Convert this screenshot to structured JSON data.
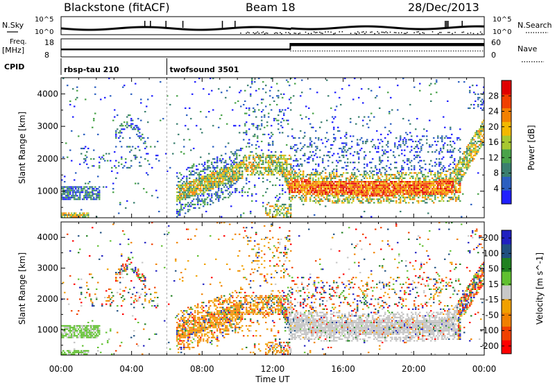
{
  "header": {
    "station": "Blackstone (fitACF)",
    "beam": "Beam 18",
    "date": "28/Dec/2013"
  },
  "sky_panel": {
    "left_label": "N.Sky",
    "right_label": "N.Search",
    "left_ticks": [
      "10^5",
      "10^0"
    ],
    "right_ticks": [
      "10^5",
      "10^0"
    ]
  },
  "freq_panel": {
    "left_label_line1": "Freq.",
    "left_label_line2": "[MHz]",
    "right_label": "Nave",
    "left_ticks": [
      "18",
      "8"
    ],
    "right_ticks": [
      "60",
      "0"
    ]
  },
  "cpid": {
    "label": "CPID",
    "programs": [
      {
        "name": "rbsp-tau 210",
        "start_hour": 0
      },
      {
        "name": "twofsound 3501",
        "start_hour": 6
      }
    ]
  },
  "colors": {
    "power": [
      "#2020ff",
      "#2b5fc0",
      "#3a7f6f",
      "#4aa34a",
      "#a8c830",
      "#f3b800",
      "#f38000",
      "#f14000",
      "#e00000"
    ],
    "velocity": [
      "#ff0000",
      "#f04000",
      "#f08000",
      "#f0a000",
      "#c8c8c8",
      "#60c030",
      "#208020",
      "#205080",
      "#2020c0"
    ],
    "ground_scatter": "#c0c0c0"
  },
  "chart_data": [
    {
      "type": "heatmap",
      "name": "Power panel",
      "ylabel": "Slant Range [km]",
      "y_ticks": [
        "1000",
        "2000",
        "3000",
        "4000"
      ],
      "ylim": [
        180,
        4500
      ],
      "xlim": [
        0,
        24
      ],
      "colorbar": {
        "label": "Power [dB]",
        "ticks": [
          "4",
          "8",
          "12",
          "16",
          "20",
          "24",
          "28"
        ],
        "range": [
          0,
          32
        ]
      },
      "features": [
        {
          "t_start": 0.0,
          "t_end": 1.8,
          "range_center_km": 1000,
          "range_width_km": 300,
          "value_db": 10
        },
        {
          "t_start": 6.5,
          "t_end": 10.0,
          "range_center_km": 1000,
          "range_width_km": 300,
          "value_db": 18
        },
        {
          "t_start": 13.0,
          "t_end": 22.5,
          "range_center_km": 1150,
          "range_width_km": 350,
          "value_db": 27
        }
      ]
    },
    {
      "type": "heatmap",
      "name": "Velocity panel",
      "ylabel": "Slant Range [km]",
      "y_ticks": [
        "1000",
        "2000",
        "3000",
        "4000"
      ],
      "ylim": [
        180,
        4500
      ],
      "xlim": [
        0,
        24
      ],
      "xlabel": "Time UT",
      "x_ticks": [
        "00:00",
        "04:00",
        "08:00",
        "12:00",
        "16:00",
        "20:00",
        "00:00"
      ],
      "colorbar": {
        "label": "Velocity [m s^-1]",
        "ticks": [
          "200",
          "100",
          "50",
          "15",
          "-15",
          "-50",
          "-100",
          "-200"
        ],
        "range": [
          -250,
          250
        ]
      },
      "features": [
        {
          "t_start": 0.0,
          "t_end": 3.0,
          "range_center_km": 900,
          "range_width_km": 300,
          "value_ms": 40
        },
        {
          "t_start": 6.5,
          "t_end": 11.0,
          "range_center_km": 1100,
          "range_width_km": 500,
          "value_ms": -60
        },
        {
          "t_start": 13.0,
          "t_end": 23.0,
          "range_center_km": 1300,
          "range_width_km": 400,
          "value_ms": 0
        }
      ]
    }
  ]
}
